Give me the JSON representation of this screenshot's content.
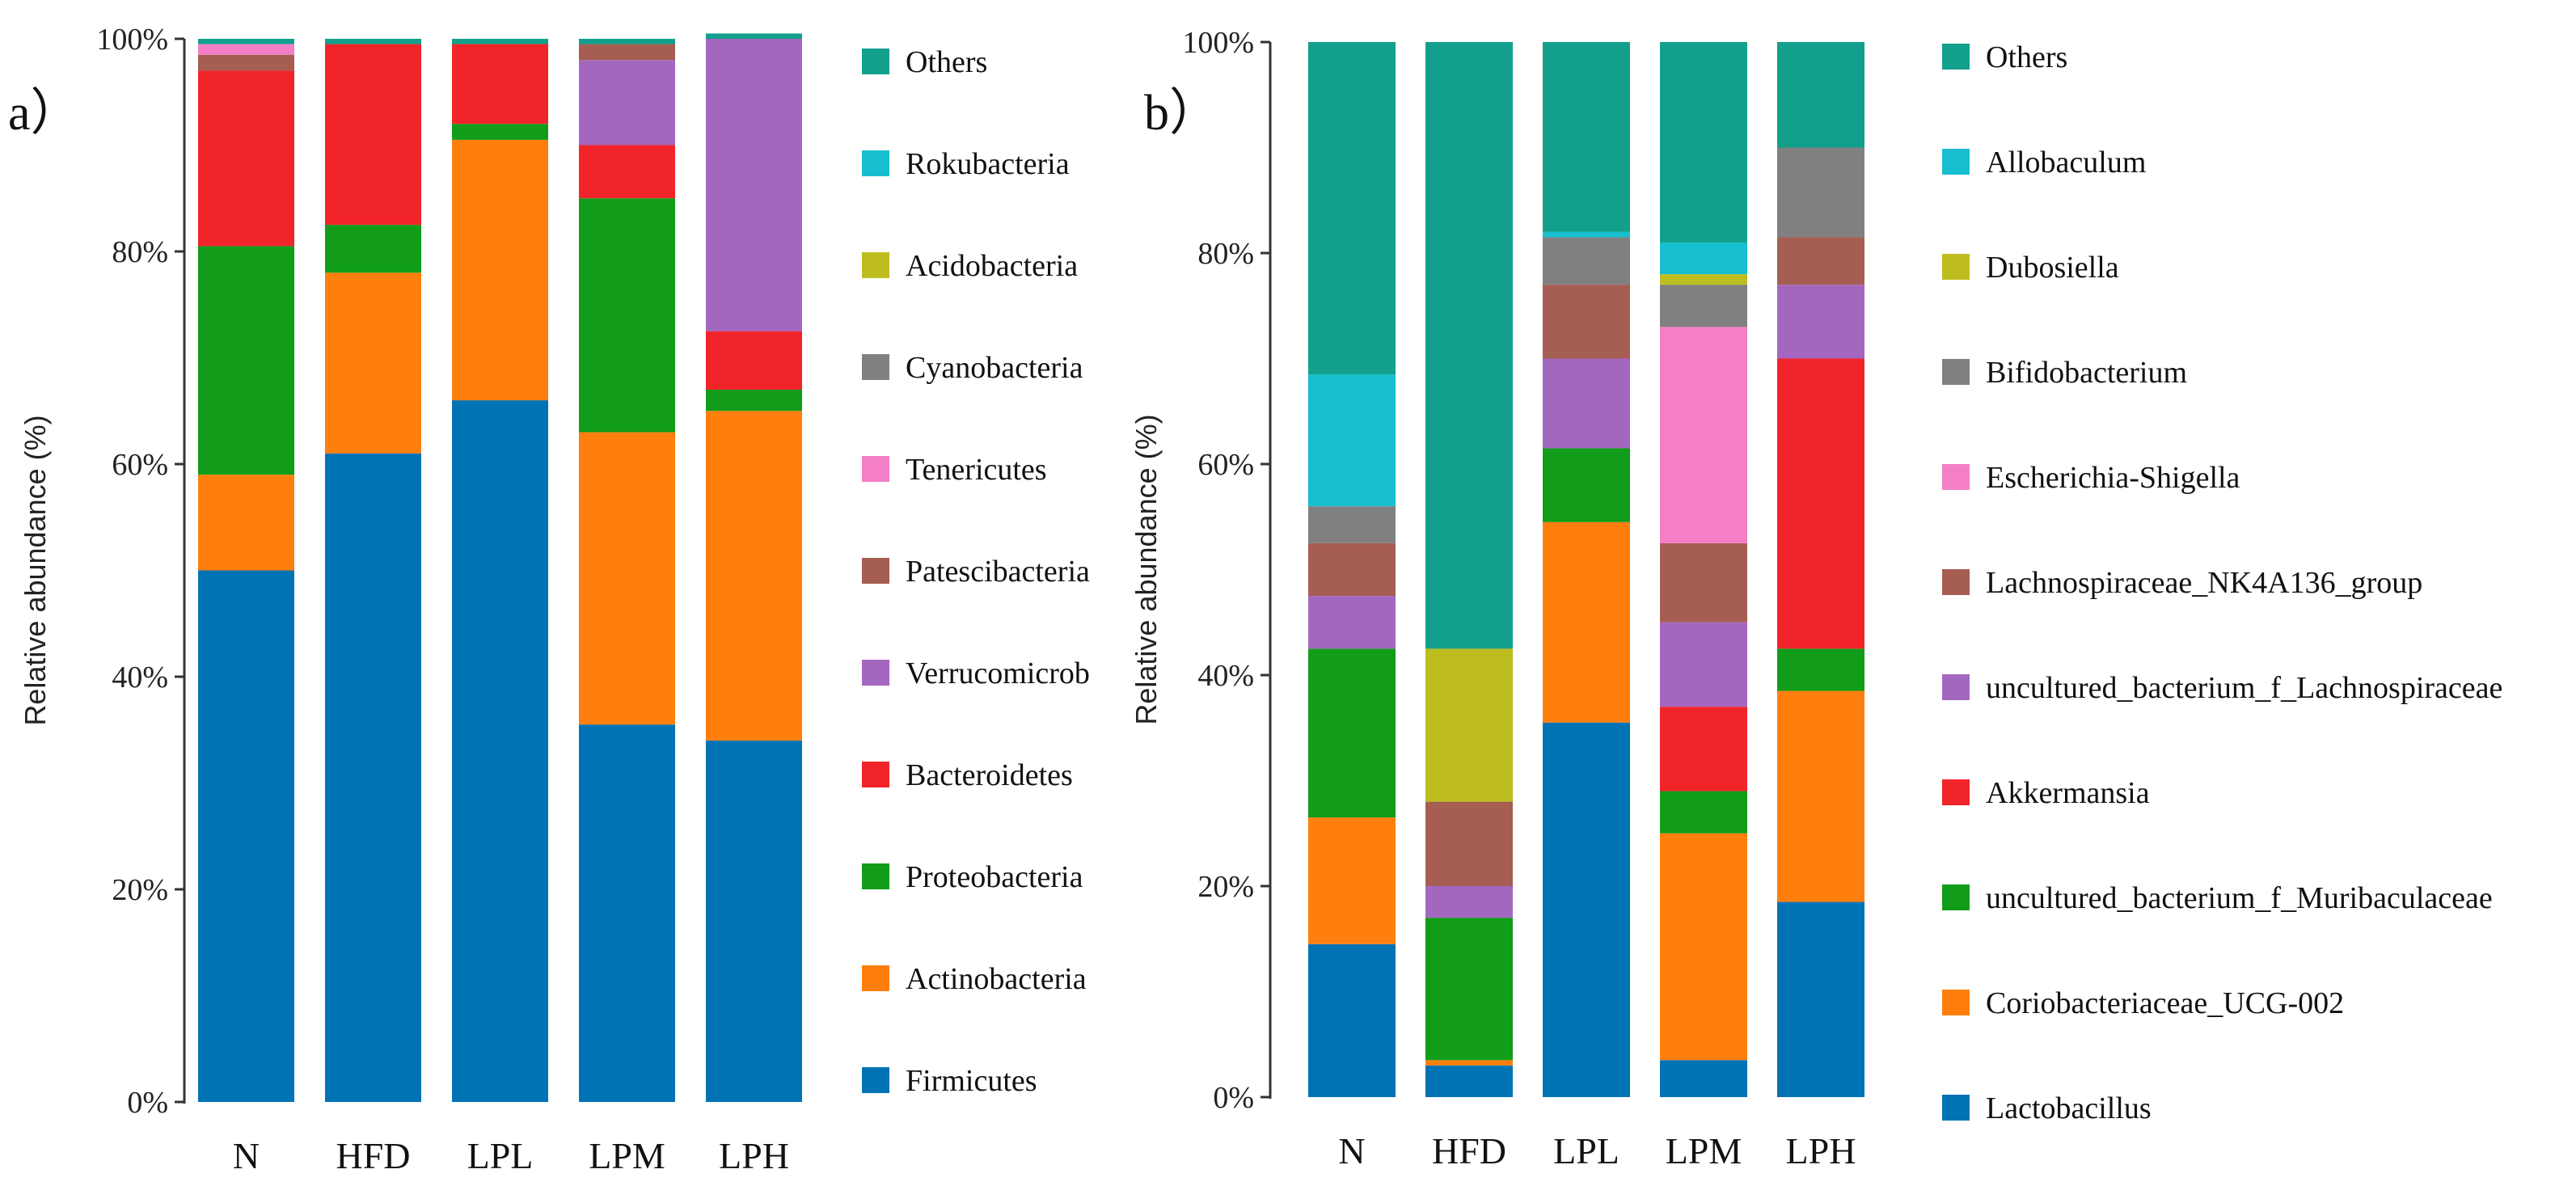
{
  "chart_data": [
    {
      "type": "bar",
      "stacked": true,
      "panel_label": "a）",
      "title": "",
      "xlabel": "",
      "ylabel": "Relative abundance (%)",
      "ylim": [
        0,
        100
      ],
      "yticks": [
        "0%",
        "20%",
        "40%",
        "60%",
        "80%",
        "100%"
      ],
      "categories": [
        "N",
        "HFD",
        "LPL",
        "LPM",
        "LPH"
      ],
      "legend_position": "right",
      "series": [
        {
          "name": "Firmicutes",
          "color": "#0073B5",
          "values": [
            50,
            61,
            66,
            35.5,
            34
          ]
        },
        {
          "name": "Actinobacteria",
          "color": "#FF7F0E",
          "values": [
            9,
            17,
            24.5,
            27.5,
            31
          ]
        },
        {
          "name": "Proteobacteria",
          "color": "#119C19",
          "values": [
            21.5,
            4.5,
            1.5,
            22,
            2
          ]
        },
        {
          "name": "Bacteroidetes",
          "color": "#F1242A",
          "values": [
            16.5,
            17,
            7.5,
            5,
            5.5
          ]
        },
        {
          "name": "Verrucomicrob",
          "color": "#A467C0",
          "values": [
            0,
            0,
            0,
            8,
            27.5
          ]
        },
        {
          "name": "Patescibacteria",
          "color": "#A65D52",
          "values": [
            1.5,
            0,
            0,
            1.5,
            0
          ]
        },
        {
          "name": "Tenericutes",
          "color": "#F47FC6",
          "values": [
            1,
            0,
            0,
            0,
            0
          ]
        },
        {
          "name": "Cyanobacteria",
          "color": "#808080",
          "values": [
            0,
            0,
            0,
            0,
            0
          ]
        },
        {
          "name": "Acidobacteria",
          "color": "#BDBD1F",
          "values": [
            0,
            0,
            0,
            0,
            0
          ]
        },
        {
          "name": "Rokubacteria",
          "color": "#17BECF",
          "values": [
            0,
            0,
            0,
            0,
            0
          ]
        },
        {
          "name": "Others",
          "color": "#12A08C",
          "values": [
            0.5,
            0.5,
            0.5,
            0.5,
            0.5
          ]
        }
      ]
    },
    {
      "type": "bar",
      "stacked": true,
      "panel_label": "b）",
      "title": "",
      "xlabel": "",
      "ylabel": "Relative abundance (%)",
      "ylim": [
        0,
        100
      ],
      "yticks": [
        "0%",
        "20%",
        "40%",
        "60%",
        "80%",
        "100%"
      ],
      "categories": [
        "N",
        "HFD",
        "LPL",
        "LPM",
        "LPH"
      ],
      "legend_position": "right",
      "series": [
        {
          "name": "Lactobacillus",
          "color": "#0073B5",
          "values": [
            14.5,
            3,
            35.5,
            3.5,
            18.5
          ]
        },
        {
          "name": "Coriobacteriaceae_UCG-002",
          "color": "#FF7F0E",
          "values": [
            12,
            0.5,
            19,
            21.5,
            20
          ]
        },
        {
          "name": "uncultured_bacterium_f_Muribaculaceae",
          "color": "#119C19",
          "values": [
            16,
            13.5,
            7,
            4,
            4
          ]
        },
        {
          "name": "Akkermansia",
          "color": "#F1242A",
          "values": [
            0,
            0,
            0,
            8,
            27.5
          ]
        },
        {
          "name": "uncultured_bacterium_f_Lachnospiraceae",
          "color": "#A467C0",
          "values": [
            5,
            3,
            8.5,
            8,
            7
          ]
        },
        {
          "name": "Lachnospiraceae_NK4A136_group",
          "color": "#A65D52",
          "values": [
            5,
            8,
            7,
            7.5,
            4.5
          ]
        },
        {
          "name": "Escherichia-Shigella",
          "color": "#F47FC6",
          "values": [
            0,
            0,
            0,
            20.5,
            0
          ]
        },
        {
          "name": "Bifidobacterium",
          "color": "#808080",
          "values": [
            3.5,
            0,
            4.5,
            4,
            8.5
          ]
        },
        {
          "name": "Dubosiella",
          "color": "#BDBD1F",
          "values": [
            0,
            14.5,
            0,
            1,
            0
          ]
        },
        {
          "name": "Allobaculum",
          "color": "#17BECF",
          "values": [
            12.5,
            0,
            0.5,
            3,
            0
          ]
        },
        {
          "name": "Others",
          "color": "#12A08C",
          "values": [
            31.5,
            57.5,
            18,
            19,
            10
          ]
        }
      ]
    }
  ]
}
